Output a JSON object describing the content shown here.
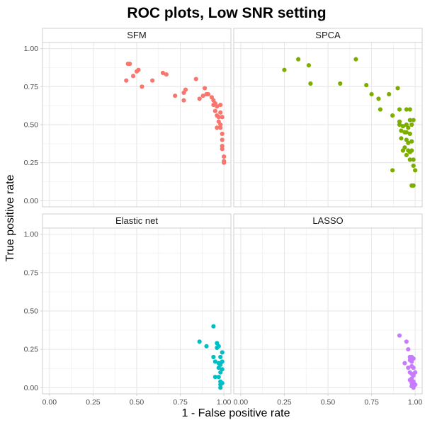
{
  "chart_data": {
    "type": "scatter",
    "title": "ROC plots, Low SNR setting",
    "xlabel": "1 - False positive rate",
    "ylabel": "True positive rate",
    "xlim": [
      -0.04,
      1.04
    ],
    "ylim": [
      -0.04,
      1.04
    ],
    "x_ticks": [
      "0.00",
      "0.25",
      "0.50",
      "0.75",
      "1.00"
    ],
    "y_ticks": [
      "0.00",
      "0.25",
      "0.50",
      "0.75",
      "1.00"
    ],
    "grid": true,
    "panels": [
      {
        "name": "SFM",
        "color": "#F8766D",
        "points": [
          [
            0.45,
            0.9
          ],
          [
            0.46,
            0.9
          ],
          [
            0.44,
            0.79
          ],
          [
            0.48,
            0.82
          ],
          [
            0.5,
            0.85
          ],
          [
            0.51,
            0.86
          ],
          [
            0.53,
            0.75
          ],
          [
            0.59,
            0.79
          ],
          [
            0.65,
            0.84
          ],
          [
            0.67,
            0.83
          ],
          [
            0.72,
            0.69
          ],
          [
            0.77,
            0.66
          ],
          [
            0.77,
            0.71
          ],
          [
            0.78,
            0.73
          ],
          [
            0.84,
            0.8
          ],
          [
            0.86,
            0.67
          ],
          [
            0.88,
            0.69
          ],
          [
            0.89,
            0.74
          ],
          [
            0.9,
            0.7
          ],
          [
            0.91,
            0.7
          ],
          [
            0.93,
            0.68
          ],
          [
            0.94,
            0.66
          ],
          [
            0.94,
            0.63
          ],
          [
            0.95,
            0.64
          ],
          [
            0.95,
            0.59
          ],
          [
            0.96,
            0.62
          ],
          [
            0.96,
            0.56
          ],
          [
            0.96,
            0.48
          ],
          [
            0.97,
            0.55
          ],
          [
            0.97,
            0.52
          ],
          [
            0.98,
            0.63
          ],
          [
            0.98,
            0.58
          ],
          [
            0.98,
            0.5
          ],
          [
            0.98,
            0.48
          ],
          [
            0.99,
            0.55
          ],
          [
            0.99,
            0.44
          ],
          [
            0.99,
            0.4
          ],
          [
            0.99,
            0.36
          ],
          [
            0.99,
            0.34
          ],
          [
            1.0,
            0.29
          ],
          [
            1.0,
            0.26
          ],
          [
            1.0,
            0.25
          ]
        ]
      },
      {
        "name": "SPCA",
        "color": "#7CAE00",
        "points": [
          [
            0.25,
            0.86
          ],
          [
            0.33,
            0.93
          ],
          [
            0.39,
            0.89
          ],
          [
            0.4,
            0.77
          ],
          [
            0.57,
            0.77
          ],
          [
            0.66,
            0.93
          ],
          [
            0.72,
            0.76
          ],
          [
            0.75,
            0.7
          ],
          [
            0.79,
            0.67
          ],
          [
            0.8,
            0.6
          ],
          [
            0.85,
            0.7
          ],
          [
            0.87,
            0.56
          ],
          [
            0.9,
            0.74
          ],
          [
            0.91,
            0.6
          ],
          [
            0.91,
            0.52
          ],
          [
            0.91,
            0.5
          ],
          [
            0.92,
            0.46
          ],
          [
            0.92,
            0.41
          ],
          [
            0.93,
            0.49
          ],
          [
            0.93,
            0.33
          ],
          [
            0.94,
            0.45
          ],
          [
            0.94,
            0.35
          ],
          [
            0.95,
            0.6
          ],
          [
            0.95,
            0.5
          ],
          [
            0.95,
            0.4
          ],
          [
            0.95,
            0.3
          ],
          [
            0.96,
            0.48
          ],
          [
            0.96,
            0.38
          ],
          [
            0.96,
            0.33
          ],
          [
            0.97,
            0.53
          ],
          [
            0.97,
            0.44
          ],
          [
            0.97,
            0.32
          ],
          [
            0.97,
            0.27
          ],
          [
            0.98,
            0.5
          ],
          [
            0.98,
            0.39
          ],
          [
            0.98,
            0.33
          ],
          [
            0.98,
            0.1
          ],
          [
            0.99,
            0.53
          ],
          [
            0.99,
            0.27
          ],
          [
            0.99,
            0.23
          ],
          [
            0.99,
            0.1
          ],
          [
            1.0,
            0.2
          ],
          [
            0.87,
            0.2
          ],
          [
            0.97,
            0.6
          ],
          [
            0.95,
            0.45
          ]
        ]
      },
      {
        "name": "Elastic net",
        "color": "#00BFC4",
        "points": [
          [
            0.94,
            0.4
          ],
          [
            0.86,
            0.3
          ],
          [
            0.9,
            0.27
          ],
          [
            0.94,
            0.2
          ],
          [
            0.95,
            0.17
          ],
          [
            0.95,
            0.07
          ],
          [
            0.96,
            0.29
          ],
          [
            0.96,
            0.26
          ],
          [
            0.97,
            0.27
          ],
          [
            0.97,
            0.13
          ],
          [
            0.97,
            0.07
          ],
          [
            0.97,
            0.16
          ],
          [
            0.98,
            0.2
          ],
          [
            0.98,
            0.1
          ],
          [
            0.98,
            0.04
          ],
          [
            0.98,
            0.02
          ],
          [
            0.98,
            0.0
          ],
          [
            0.99,
            0.23
          ],
          [
            0.99,
            0.17
          ],
          [
            0.99,
            0.12
          ],
          [
            0.99,
            0.03
          ],
          [
            0.98,
            0.15
          ]
        ]
      },
      {
        "name": "LASSO",
        "color": "#C77CFF",
        "points": [
          [
            0.91,
            0.34
          ],
          [
            0.94,
            0.16
          ],
          [
            0.95,
            0.3
          ],
          [
            0.96,
            0.25
          ],
          [
            0.96,
            0.13
          ],
          [
            0.97,
            0.2
          ],
          [
            0.97,
            0.18
          ],
          [
            0.97,
            0.1
          ],
          [
            0.97,
            0.05
          ],
          [
            0.98,
            0.2
          ],
          [
            0.98,
            0.17
          ],
          [
            0.98,
            0.14
          ],
          [
            0.98,
            0.09
          ],
          [
            0.98,
            0.06
          ],
          [
            0.98,
            0.03
          ],
          [
            0.98,
            0.01
          ],
          [
            0.99,
            0.19
          ],
          [
            0.99,
            0.13
          ],
          [
            0.99,
            0.08
          ],
          [
            0.99,
            0.04
          ],
          [
            0.99,
            0.0
          ],
          [
            1.0,
            0.1
          ],
          [
            1.0,
            0.02
          ]
        ]
      }
    ]
  }
}
